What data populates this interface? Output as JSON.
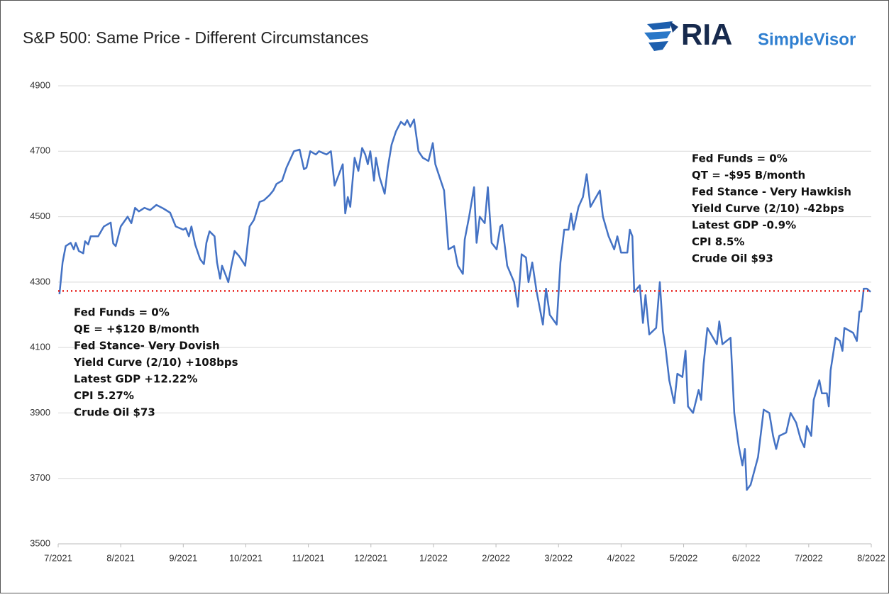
{
  "chart_data": {
    "type": "line",
    "title": "S&P 500: Same Price - Different Circumstances",
    "logo": {
      "text": "RIA",
      "subtext": "SimpleVisor"
    },
    "xlim": [
      0,
      13
    ],
    "xticks": [
      {
        "value": 0,
        "label": "7/2021"
      },
      {
        "value": 1,
        "label": "8/2021"
      },
      {
        "value": 2,
        "label": "9/2021"
      },
      {
        "value": 3,
        "label": "10/2021"
      },
      {
        "value": 4,
        "label": "11/2021"
      },
      {
        "value": 5,
        "label": "12/2021"
      },
      {
        "value": 6,
        "label": "1/2022"
      },
      {
        "value": 7,
        "label": "2/2022"
      },
      {
        "value": 8,
        "label": "3/2022"
      },
      {
        "value": 9,
        "label": "4/2022"
      },
      {
        "value": 10,
        "label": "5/2022"
      },
      {
        "value": 11,
        "label": "6/2022"
      },
      {
        "value": 12,
        "label": "7/2022"
      },
      {
        "value": 13,
        "label": "8/2022"
      }
    ],
    "ylim": [
      3500,
      4900
    ],
    "yticks": [
      3500,
      3700,
      3900,
      4100,
      4300,
      4500,
      4700,
      4900
    ],
    "grid": true,
    "hline": {
      "value": 4273,
      "color": "#e8211c"
    },
    "annotations": [
      {
        "lines": [
          "Fed Funds = 0%",
          "QE = +$120 B/month",
          "Fed Stance- Very Dovish",
          "Yield Curve (2/10) +108bps",
          "Latest GDP +12.22%",
          "CPI 5.27%",
          "Crude Oil $73"
        ]
      },
      {
        "lines": [
          "Fed Funds = 0%",
          "QT = -$95 B/month",
          "Fed Stance - Very Hawkish",
          "Yield Curve (2/10) -42bps",
          "Latest GDP -0.9%",
          "CPI 8.5%",
          "Crude Oil $93"
        ]
      }
    ],
    "x": [
      0.02,
      0.07,
      0.12,
      0.2,
      0.25,
      0.28,
      0.33,
      0.4,
      0.43,
      0.48,
      0.52,
      0.64,
      0.73,
      0.84,
      0.88,
      0.92,
      1.0,
      1.11,
      1.17,
      1.23,
      1.29,
      1.38,
      1.47,
      1.57,
      1.68,
      1.79,
      1.88,
      2.0,
      2.04,
      2.09,
      2.13,
      2.19,
      2.27,
      2.33,
      2.37,
      2.42,
      2.5,
      2.54,
      2.59,
      2.62,
      2.68,
      2.72,
      2.77,
      2.82,
      2.89,
      2.96,
      2.99,
      3.06,
      3.13,
      3.22,
      3.29,
      3.38,
      3.44,
      3.49,
      3.58,
      3.65,
      3.77,
      3.86,
      3.93,
      3.97,
      4.03,
      4.12,
      4.17,
      4.29,
      4.36,
      4.42,
      4.49,
      4.55,
      4.59,
      4.63,
      4.67,
      4.74,
      4.8,
      4.86,
      4.91,
      4.95,
      4.99,
      5.05,
      5.08,
      5.14,
      5.22,
      5.27,
      5.33,
      5.4,
      5.48,
      5.54,
      5.58,
      5.63,
      5.69,
      5.76,
      5.83,
      5.92,
      5.99,
      6.03,
      6.1,
      6.17,
      6.24,
      6.33,
      6.39,
      6.47,
      6.5,
      6.57,
      6.65,
      6.69,
      6.74,
      6.82,
      6.87,
      6.93,
      7.01,
      7.07,
      7.1,
      7.18,
      7.29,
      7.35,
      7.41,
      7.48,
      7.52,
      7.58,
      7.65,
      7.75,
      7.8,
      7.86,
      7.97,
      8.03,
      8.09,
      8.16,
      8.2,
      8.24,
      8.32,
      8.39,
      8.45,
      8.51,
      8.66,
      8.71,
      8.8,
      8.89,
      8.94,
      9.0,
      9.1,
      9.14,
      9.18,
      9.21,
      9.3,
      9.35,
      9.39,
      9.45,
      9.56,
      9.62,
      9.67,
      9.71,
      9.77,
      9.85,
      9.9,
      9.98,
      10.03,
      10.07,
      10.15,
      10.24,
      10.28,
      10.32,
      10.38,
      10.53,
      10.57,
      10.62,
      10.75,
      10.81,
      10.88,
      10.94,
      10.98,
      11.01,
      11.07,
      11.19,
      11.28,
      11.37,
      11.43,
      11.48,
      11.53,
      11.64,
      11.71,
      11.8,
      11.87,
      11.93,
      11.97,
      12.04,
      12.08,
      12.17,
      12.21,
      12.29,
      12.32,
      12.35,
      12.43,
      12.5,
      12.54,
      12.57,
      12.71,
      12.77,
      12.81,
      12.84,
      12.88,
      12.93,
      12.99
    ],
    "series": [
      {
        "color": "#4472c4",
        "values": [
          4263,
          4360,
          4410,
          4420,
          4400,
          4420,
          4395,
          4388,
          4425,
          4415,
          4440,
          4440,
          4470,
          4482,
          4418,
          4410,
          4470,
          4500,
          4480,
          4527,
          4516,
          4527,
          4520,
          4536,
          4525,
          4512,
          4470,
          4460,
          4465,
          4440,
          4470,
          4415,
          4370,
          4355,
          4420,
          4455,
          4440,
          4360,
          4310,
          4350,
          4320,
          4300,
          4350,
          4395,
          4380,
          4360,
          4350,
          4470,
          4490,
          4545,
          4550,
          4566,
          4580,
          4600,
          4610,
          4650,
          4700,
          4705,
          4645,
          4650,
          4700,
          4690,
          4700,
          4690,
          4700,
          4595,
          4630,
          4660,
          4510,
          4560,
          4530,
          4680,
          4640,
          4710,
          4690,
          4660,
          4700,
          4610,
          4680,
          4620,
          4570,
          4650,
          4720,
          4760,
          4790,
          4780,
          4795,
          4775,
          4797,
          4700,
          4680,
          4670,
          4725,
          4660,
          4620,
          4580,
          4400,
          4410,
          4350,
          4325,
          4430,
          4500,
          4590,
          4420,
          4500,
          4480,
          4590,
          4420,
          4400,
          4470,
          4475,
          4350,
          4300,
          4225,
          4385,
          4375,
          4300,
          4360,
          4270,
          4170,
          4280,
          4200,
          4170,
          4360,
          4460,
          4460,
          4510,
          4460,
          4530,
          4560,
          4630,
          4530,
          4580,
          4500,
          4440,
          4400,
          4440,
          4390,
          4390,
          4460,
          4440,
          4270,
          4290,
          4175,
          4260,
          4140,
          4160,
          4300,
          4150,
          4100,
          4000,
          3930,
          4020,
          4010,
          4090,
          3920,
          3900,
          3970,
          3940,
          4050,
          4160,
          4110,
          4180,
          4110,
          4130,
          3900,
          3800,
          3740,
          3790,
          3665,
          3680,
          3765,
          3910,
          3900,
          3830,
          3790,
          3830,
          3840,
          3900,
          3870,
          3820,
          3795,
          3860,
          3830,
          3940,
          4000,
          3960,
          3960,
          3920,
          4030,
          4130,
          4120,
          4090,
          4160,
          4145,
          4120,
          4210,
          4210,
          4280,
          4280,
          4270
        ]
      }
    ]
  }
}
